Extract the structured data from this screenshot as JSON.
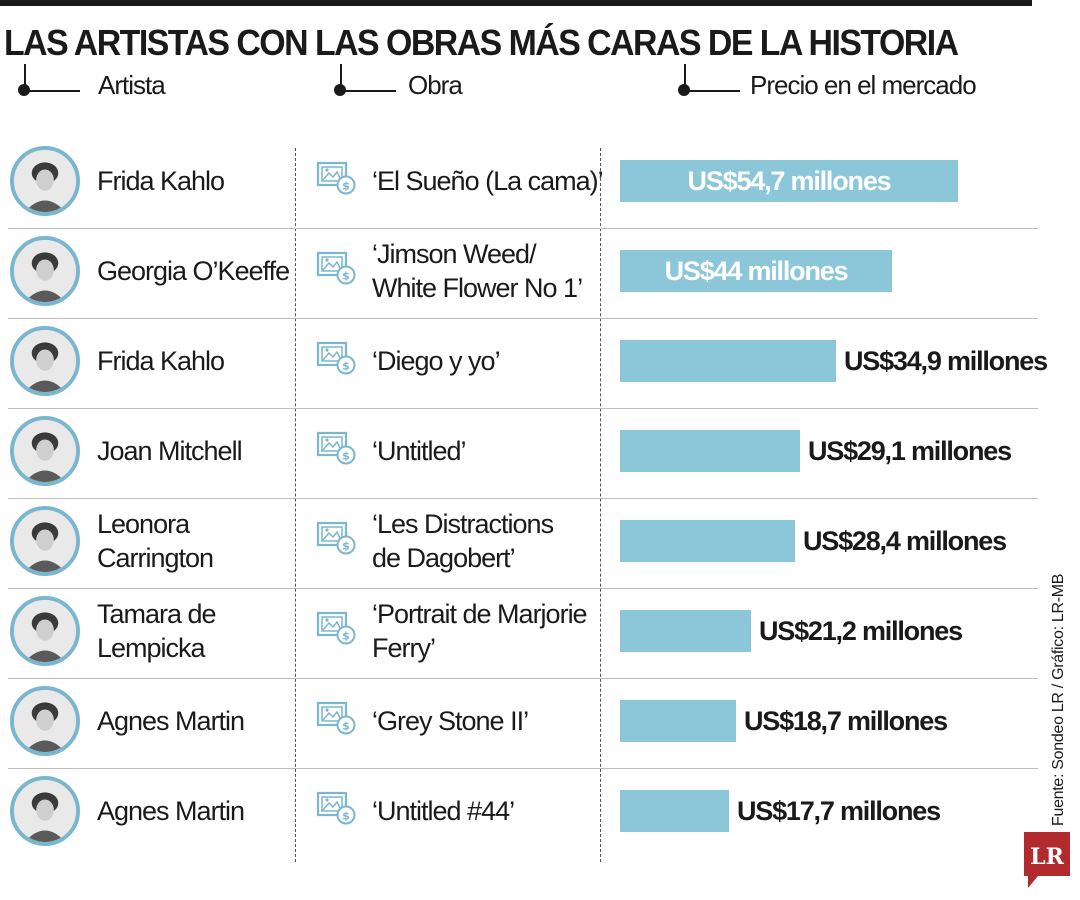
{
  "title": "LAS ARTISTAS CON LAS OBRAS MÁS CARAS DE LA HISTORIA",
  "columns": {
    "artist": "Artista",
    "work": "Obra",
    "price": "Precio en el mercado"
  },
  "source": "Fuente: Sondeo LR / Gráfico: LR-MB",
  "logo": {
    "text": "LR"
  },
  "colors": {
    "bar": "#8cc7d9",
    "avatar_ring": "#7bb6cf",
    "logo": "#b22a2e",
    "text": "#1a1a1a"
  },
  "icons": {
    "artwork": "framed-painting-price-icon",
    "avatar": "artist-portrait"
  },
  "chart_data": {
    "type": "bar",
    "orientation": "horizontal",
    "title": "LAS ARTISTAS CON LAS OBRAS MÁS CARAS DE LA HISTORIA",
    "categories": [
      "Frida Kahlo",
      "Georgia O’Keeffe",
      "Frida Kahlo",
      "Joan Mitchell",
      "Leonora\nCarrington",
      "Tamara de\nLempicka",
      "Agnes Martin",
      "Agnes Martin"
    ],
    "works": [
      "‘El Sueño (La cama)’",
      "‘Jimson Weed/\nWhite Flower No 1’",
      "‘Diego y yo’",
      "‘Untitled’",
      " ‘Les Distractions\nde Dagobert’",
      "‘Portrait de Marjorie\nFerry’",
      "‘Grey Stone II’",
      "‘Untitled #44’"
    ],
    "values": [
      54.7,
      44,
      34.9,
      29.1,
      28.4,
      21.2,
      18.7,
      17.7
    ],
    "labels": [
      "US$54,7 millones",
      "US$44 millones",
      "US$34,9 millones",
      "US$29,1 millones",
      "US$28,4 millones",
      "US$21,2 millones",
      "US$18,7 millones",
      "US$17,7 millones"
    ],
    "label_inside": [
      true,
      true,
      false,
      false,
      false,
      false,
      false,
      false
    ],
    "unit": "millones de US$",
    "grid": false,
    "legend": "none"
  }
}
